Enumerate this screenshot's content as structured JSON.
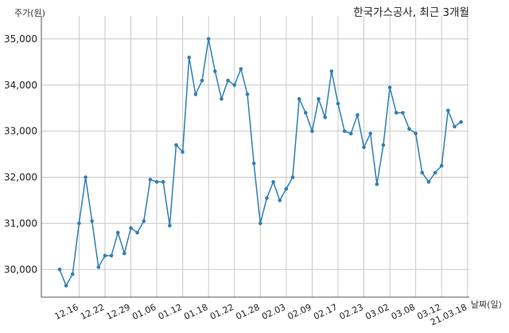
{
  "chart_data": {
    "type": "line",
    "title": "한국가스공사, 최근 3개월",
    "ylabel": "주가(원)",
    "xlabel": "날짜(일)",
    "ylim": [
      29400,
      35500
    ],
    "yticks": [
      30000,
      31000,
      32000,
      33000,
      34000,
      35000
    ],
    "ytick_labels": [
      "30,000",
      "31,000",
      "32,000",
      "33,000",
      "34,000",
      "35,000"
    ],
    "xtick_labels": [
      "12.16",
      "12.22",
      "12.29",
      "01.06",
      "01.12",
      "01.18",
      "01.22",
      "01.28",
      "02.03",
      "02.09",
      "02.17",
      "02.23",
      "03.02",
      "03.08",
      "03.12",
      "21.03.18"
    ],
    "xtick_index": [
      3,
      7,
      11,
      15,
      19,
      23,
      27,
      31,
      35,
      39,
      43,
      47,
      51,
      55,
      59,
      63
    ],
    "grid": true,
    "line_color": "#2f7fb5",
    "series": [
      {
        "values": [
          30000,
          29650,
          29900,
          31000,
          32000,
          31050,
          30050,
          30300,
          30300,
          30800,
          30350,
          30900,
          30800,
          31050,
          31950,
          31900,
          31900,
          30950,
          32700,
          32550,
          34600,
          33800,
          34100,
          35000,
          34300,
          33700,
          34100,
          34000,
          34350,
          33800,
          32300,
          31000,
          31550,
          31900,
          31500,
          31750,
          32000,
          33700,
          33400,
          33000,
          33700,
          33300,
          34300,
          33600,
          33000,
          32950,
          33350,
          32650,
          32950,
          31850,
          32700,
          33950,
          33400,
          33400,
          33050,
          32950,
          32100,
          31900,
          32100,
          32250,
          33450,
          33100,
          33200
        ]
      }
    ]
  }
}
